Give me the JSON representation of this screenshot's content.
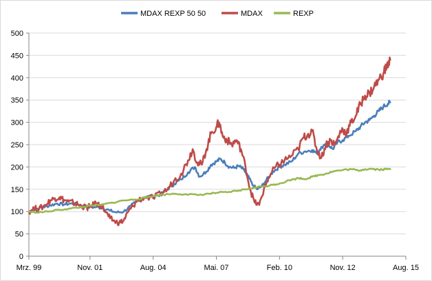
{
  "chart_data": {
    "type": "line",
    "title": "",
    "xlabel": "",
    "ylabel": "",
    "ylim": [
      0,
      500
    ],
    "yticks": [
      0,
      50,
      100,
      150,
      200,
      250,
      300,
      350,
      400,
      450,
      500
    ],
    "xlim": [
      1999.17,
      2015.58
    ],
    "xticks": [
      {
        "label": "Mrz. 99",
        "t": 1999.17
      },
      {
        "label": "Nov. 01",
        "t": 2001.83
      },
      {
        "label": "Aug. 04",
        "t": 2004.58
      },
      {
        "label": "Mai. 07",
        "t": 2007.33
      },
      {
        "label": "Feb. 10",
        "t": 2010.08
      },
      {
        "label": "Nov. 12",
        "t": 2012.83
      },
      {
        "label": "Aug. 15",
        "t": 2015.58
      }
    ],
    "legend_position": "top-center",
    "series": [
      {
        "name": "MDAX REXP  50 50",
        "color": "#4a7ebb",
        "points": [
          [
            1999.17,
            100
          ],
          [
            1999.5,
            106
          ],
          [
            1999.8,
            110
          ],
          [
            2000.1,
            114
          ],
          [
            2000.4,
            118
          ],
          [
            2000.7,
            116
          ],
          [
            2001.0,
            118
          ],
          [
            2001.3,
            116
          ],
          [
            2001.6,
            112
          ],
          [
            2001.83,
            110
          ],
          [
            2002.1,
            110
          ],
          [
            2002.4,
            108
          ],
          [
            2002.7,
            102
          ],
          [
            2003.0,
            98
          ],
          [
            2003.3,
            100
          ],
          [
            2003.6,
            112
          ],
          [
            2003.9,
            124
          ],
          [
            2004.2,
            132
          ],
          [
            2004.58,
            135
          ],
          [
            2004.9,
            138
          ],
          [
            2005.2,
            150
          ],
          [
            2005.5,
            162
          ],
          [
            2005.8,
            172
          ],
          [
            2006.1,
            188
          ],
          [
            2006.4,
            200
          ],
          [
            2006.6,
            178
          ],
          [
            2006.9,
            190
          ],
          [
            2007.1,
            205
          ],
          [
            2007.33,
            212
          ],
          [
            2007.5,
            218
          ],
          [
            2007.7,
            210
          ],
          [
            2007.9,
            200
          ],
          [
            2008.1,
            198
          ],
          [
            2008.3,
            202
          ],
          [
            2008.5,
            195
          ],
          [
            2008.7,
            180
          ],
          [
            2008.9,
            160
          ],
          [
            2009.1,
            150
          ],
          [
            2009.3,
            156
          ],
          [
            2009.5,
            170
          ],
          [
            2009.8,
            190
          ],
          [
            2010.08,
            200
          ],
          [
            2010.3,
            205
          ],
          [
            2010.6,
            212
          ],
          [
            2010.9,
            230
          ],
          [
            2011.2,
            235
          ],
          [
            2011.5,
            238
          ],
          [
            2011.7,
            230
          ],
          [
            2011.9,
            245
          ],
          [
            2012.2,
            250
          ],
          [
            2012.4,
            240
          ],
          [
            2012.6,
            255
          ],
          [
            2012.83,
            260
          ],
          [
            2013.1,
            270
          ],
          [
            2013.4,
            280
          ],
          [
            2013.6,
            290
          ],
          [
            2013.8,
            300
          ],
          [
            2014.0,
            305
          ],
          [
            2014.2,
            315
          ],
          [
            2014.4,
            325
          ],
          [
            2014.6,
            335
          ],
          [
            2014.8,
            342
          ],
          [
            2014.9,
            345
          ]
        ]
      },
      {
        "name": "MDAX",
        "color": "#be4b48",
        "points": [
          [
            1999.17,
            100
          ],
          [
            1999.4,
            108
          ],
          [
            1999.6,
            105
          ],
          [
            1999.9,
            115
          ],
          [
            2000.1,
            125
          ],
          [
            2000.3,
            130
          ],
          [
            2000.5,
            132
          ],
          [
            2000.7,
            126
          ],
          [
            2000.9,
            122
          ],
          [
            2001.1,
            120
          ],
          [
            2001.3,
            116
          ],
          [
            2001.5,
            112
          ],
          [
            2001.7,
            108
          ],
          [
            2001.83,
            112
          ],
          [
            2002.1,
            118
          ],
          [
            2002.3,
            115
          ],
          [
            2002.5,
            100
          ],
          [
            2002.7,
            85
          ],
          [
            2002.9,
            78
          ],
          [
            2003.1,
            75
          ],
          [
            2003.3,
            80
          ],
          [
            2003.5,
            100
          ],
          [
            2003.7,
            112
          ],
          [
            2003.9,
            125
          ],
          [
            2004.2,
            132
          ],
          [
            2004.58,
            130
          ],
          [
            2004.9,
            140
          ],
          [
            2005.2,
            150
          ],
          [
            2005.5,
            170
          ],
          [
            2005.8,
            185
          ],
          [
            2006.1,
            215
          ],
          [
            2006.3,
            240
          ],
          [
            2006.5,
            210
          ],
          [
            2006.7,
            205
          ],
          [
            2006.9,
            240
          ],
          [
            2007.1,
            275
          ],
          [
            2007.33,
            290
          ],
          [
            2007.45,
            300
          ],
          [
            2007.6,
            270
          ],
          [
            2007.8,
            260
          ],
          [
            2008.0,
            250
          ],
          [
            2008.2,
            260
          ],
          [
            2008.4,
            240
          ],
          [
            2008.6,
            200
          ],
          [
            2008.8,
            150
          ],
          [
            2009.0,
            120
          ],
          [
            2009.2,
            115
          ],
          [
            2009.4,
            150
          ],
          [
            2009.6,
            175
          ],
          [
            2009.9,
            200
          ],
          [
            2010.08,
            205
          ],
          [
            2010.3,
            215
          ],
          [
            2010.6,
            225
          ],
          [
            2010.9,
            240
          ],
          [
            2011.1,
            265
          ],
          [
            2011.3,
            272
          ],
          [
            2011.5,
            280
          ],
          [
            2011.7,
            240
          ],
          [
            2011.9,
            220
          ],
          [
            2012.1,
            250
          ],
          [
            2012.3,
            260
          ],
          [
            2012.5,
            250
          ],
          [
            2012.7,
            275
          ],
          [
            2012.83,
            285
          ],
          [
            2013.0,
            275
          ],
          [
            2013.2,
            300
          ],
          [
            2013.4,
            315
          ],
          [
            2013.6,
            340
          ],
          [
            2013.8,
            360
          ],
          [
            2014.0,
            365
          ],
          [
            2014.2,
            380
          ],
          [
            2014.4,
            395
          ],
          [
            2014.6,
            410
          ],
          [
            2014.75,
            425
          ],
          [
            2014.9,
            440
          ]
        ]
      },
      {
        "name": "REXP",
        "color": "#98b954",
        "points": [
          [
            1999.17,
            100
          ],
          [
            1999.5,
            98
          ],
          [
            2000.0,
            100
          ],
          [
            2000.5,
            104
          ],
          [
            2001.0,
            107
          ],
          [
            2001.5,
            110
          ],
          [
            2001.83,
            113
          ],
          [
            2002.3,
            115
          ],
          [
            2002.8,
            120
          ],
          [
            2003.3,
            125
          ],
          [
            2003.8,
            127
          ],
          [
            2004.2,
            131
          ],
          [
            2004.58,
            135
          ],
          [
            2005.0,
            138
          ],
          [
            2005.5,
            140
          ],
          [
            2006.0,
            139
          ],
          [
            2006.5,
            137
          ],
          [
            2007.0,
            140
          ],
          [
            2007.33,
            142
          ],
          [
            2007.8,
            143
          ],
          [
            2008.3,
            147
          ],
          [
            2008.8,
            152
          ],
          [
            2009.3,
            156
          ],
          [
            2009.8,
            160
          ],
          [
            2010.08,
            163
          ],
          [
            2010.5,
            170
          ],
          [
            2010.9,
            175
          ],
          [
            2011.2,
            173
          ],
          [
            2011.5,
            178
          ],
          [
            2011.8,
            182
          ],
          [
            2012.1,
            185
          ],
          [
            2012.4,
            190
          ],
          [
            2012.83,
            193
          ],
          [
            2013.2,
            195
          ],
          [
            2013.5,
            192
          ],
          [
            2013.8,
            195
          ],
          [
            2014.1,
            196
          ],
          [
            2014.4,
            194
          ],
          [
            2014.7,
            195
          ],
          [
            2014.9,
            195
          ]
        ]
      }
    ]
  }
}
